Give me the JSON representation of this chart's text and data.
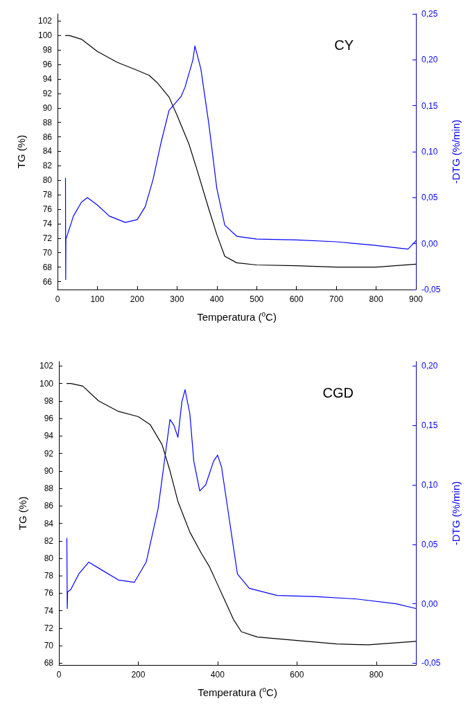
{
  "chart_data": [
    {
      "type": "line",
      "xlabel": "Temperatura ($^{o}$C)",
      "ylabel": "TG (%)",
      "y2label": "-DTG (%/min)",
      "annotations": [
        "CY"
      ],
      "xlim": [
        0,
        900
      ],
      "xticks": [
        0,
        100,
        200,
        300,
        400,
        500,
        600,
        700,
        800,
        900
      ],
      "ylim": [
        64.9,
        103
      ],
      "yticks": [
        66,
        68,
        70,
        72,
        74,
        76,
        78,
        80,
        82,
        84,
        86,
        88,
        90,
        92,
        94,
        96,
        98,
        100,
        102
      ],
      "y2lim": [
        -0.05,
        0.25
      ],
      "y2ticks": [
        {
          "value": -0.05,
          "label": "-0,05"
        },
        {
          "value": 0,
          "label": "0,00"
        },
        {
          "value": 0.05,
          "label": "0,05"
        },
        {
          "value": 0.1,
          "label": "0,10"
        },
        {
          "value": 0.15,
          "label": "0,15"
        },
        {
          "value": 0.2,
          "label": "0,20"
        },
        {
          "value": 0.25,
          "label": "0,25"
        }
      ],
      "grid": false,
      "marker": "none",
      "line_style": "solid",
      "series": [
        {
          "color": "#000000",
          "x": [
            20,
            30,
            60,
            100,
            150,
            200,
            230,
            250,
            280,
            300,
            330,
            350,
            380,
            400,
            420,
            450,
            500,
            600,
            700,
            800,
            900
          ],
          "values": [
            100,
            100,
            99.5,
            97.8,
            96.3,
            95.2,
            94.5,
            93.5,
            91.5,
            89,
            85,
            81.5,
            76,
            72.5,
            69.5,
            68.6,
            68.3,
            68.2,
            68,
            68,
            68.4
          ]
        },
        {
          "color": "#0000ff",
          "axis": "y2",
          "x": [
            20,
            20.5,
            21,
            25,
            40,
            60,
            75,
            100,
            130,
            170,
            200,
            220,
            240,
            260,
            280,
            300,
            310,
            320,
            340,
            345,
            360,
            380,
            400,
            420,
            450,
            500,
            600,
            700,
            800,
            880,
            900
          ],
          "values": [
            0.071,
            -0.039,
            0.005,
            0.01,
            0.03,
            0.045,
            0.05,
            0.042,
            0.03,
            0.023,
            0.026,
            0.04,
            0.07,
            0.11,
            0.145,
            0.155,
            0.16,
            0.17,
            0.2,
            0.215,
            0.19,
            0.13,
            0.06,
            0.02,
            0.008,
            0.005,
            0.004,
            0.002,
            -0.002,
            -0.006,
            0.003
          ]
        }
      ]
    },
    {
      "type": "line",
      "xlabel": "Temperatura ($^{o}$C)",
      "ylabel": "TG (%)",
      "y2label": "-DTG (%/min)",
      "annotations": [
        "CGD"
      ],
      "xlim": [
        0,
        900
      ],
      "xticks": [
        0,
        200,
        400,
        600,
        800
      ],
      "ylim": [
        67.8,
        102.5
      ],
      "yticks": [
        68,
        70,
        72,
        74,
        76,
        78,
        80,
        82,
        84,
        86,
        88,
        90,
        92,
        94,
        96,
        98,
        100,
        102
      ],
      "y2lim": [
        -0.0515,
        0.2037
      ],
      "y2ticks": [
        {
          "value": -0.05,
          "label": "-0,05"
        },
        {
          "value": 0,
          "label": "0,00"
        },
        {
          "value": 0.05,
          "label": "0,05"
        },
        {
          "value": 0.1,
          "label": "0,10"
        },
        {
          "value": 0.15,
          "label": "0,15"
        },
        {
          "value": 0.2,
          "label": "0,20"
        }
      ],
      "grid": false,
      "marker": "none",
      "line_style": "solid",
      "series": [
        {
          "color": "#000000",
          "x": [
            20,
            30,
            60,
            100,
            150,
            200,
            230,
            260,
            280,
            300,
            330,
            360,
            380,
            400,
            420,
            440,
            460,
            500,
            600,
            700,
            780,
            900
          ],
          "values": [
            100,
            100,
            99.7,
            98,
            96.8,
            96.2,
            95.3,
            93,
            90,
            86.5,
            83,
            80.5,
            79,
            77,
            75,
            73,
            71.6,
            71,
            70.6,
            70.2,
            70.1,
            70.5
          ]
        },
        {
          "color": "#0000ff",
          "axis": "y2",
          "x": [
            20,
            21,
            22,
            30,
            50,
            75,
            100,
            150,
            190,
            220,
            250,
            270,
            280,
            290,
            300,
            310,
            318,
            330,
            340,
            355,
            370,
            390,
            400,
            410,
            430,
            450,
            480,
            550,
            650,
            750,
            850,
            900
          ],
          "values": [
            0.055,
            -0.004,
            0.01,
            0.012,
            0.025,
            0.035,
            0.03,
            0.02,
            0.018,
            0.035,
            0.08,
            0.13,
            0.155,
            0.15,
            0.14,
            0.17,
            0.18,
            0.16,
            0.12,
            0.095,
            0.1,
            0.12,
            0.125,
            0.115,
            0.07,
            0.025,
            0.013,
            0.007,
            0.006,
            0.004,
            0,
            -0.004
          ]
        }
      ]
    }
  ]
}
